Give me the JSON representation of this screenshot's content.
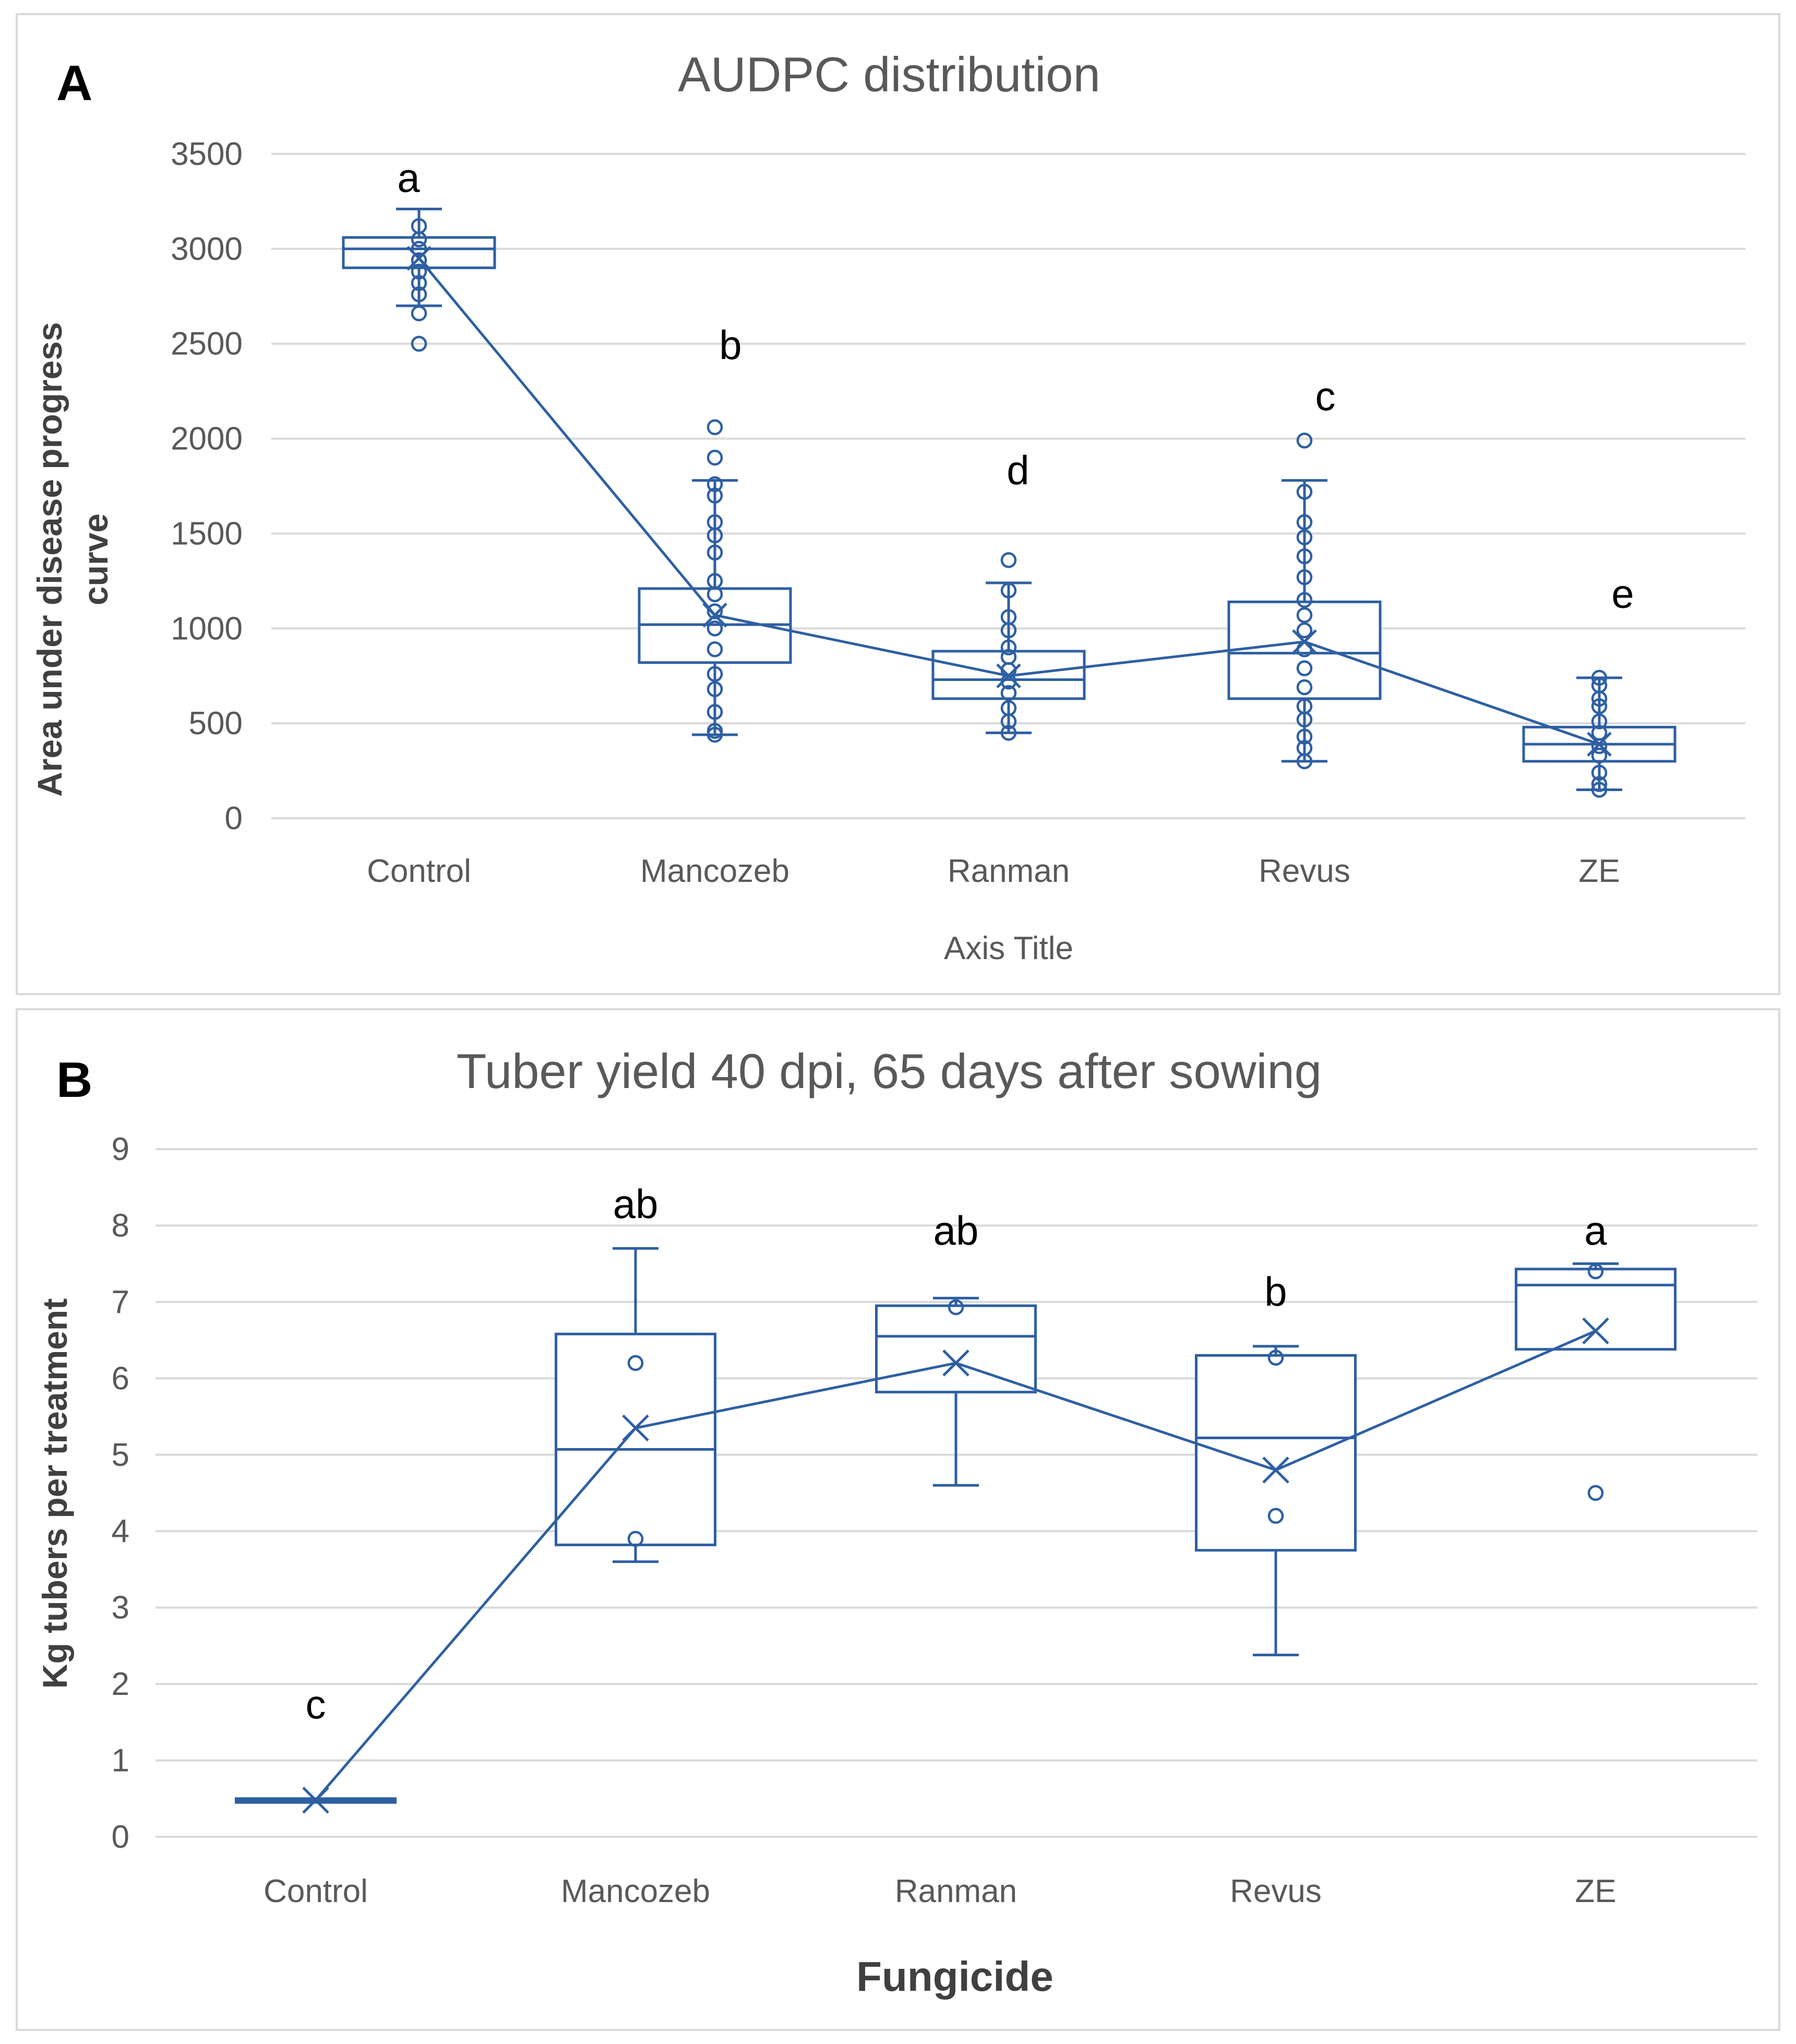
{
  "colors": {
    "series": "#2e5fa3",
    "grid": "#d9d9d9",
    "axis_text": "#595959",
    "letters": "#000000"
  },
  "chart_data": [
    {
      "panel": "A",
      "type": "box",
      "title": "AUDPC distribution",
      "xlabel": "Axis Title",
      "ylabel": "Area under disease progress curve",
      "categories": [
        "Control",
        "Mancozeb",
        "Ranman",
        "Revus",
        "ZE"
      ],
      "yticks": [
        "0",
        "500",
        "1000",
        "1500",
        "2000",
        "2500",
        "3000",
        "3500"
      ],
      "ylim": [
        0,
        3500
      ],
      "boxes": [
        {
          "category": "Control",
          "min": 2700,
          "q1": 2900,
          "median": 3000,
          "q3": 3060,
          "max": 3210,
          "mean": 2950,
          "points": [
            3120,
            3050,
            3000,
            2940,
            2880,
            2820,
            2760,
            2660,
            2500
          ]
        },
        {
          "category": "Mancozeb",
          "min": 440,
          "q1": 820,
          "median": 1020,
          "q3": 1210,
          "max": 1780,
          "mean": 1070,
          "points": [
            2060,
            1900,
            1760,
            1700,
            1560,
            1490,
            1400,
            1250,
            1180,
            1090,
            1000,
            890,
            760,
            680,
            560,
            460,
            440
          ]
        },
        {
          "category": "Ranman",
          "min": 450,
          "q1": 630,
          "median": 730,
          "q3": 880,
          "max": 1240,
          "mean": 750,
          "points": [
            1360,
            1200,
            1060,
            990,
            900,
            850,
            780,
            720,
            660,
            580,
            510,
            450
          ]
        },
        {
          "category": "Revus",
          "min": 300,
          "q1": 630,
          "median": 870,
          "q3": 1140,
          "max": 1780,
          "mean": 930,
          "points": [
            1990,
            1720,
            1560,
            1480,
            1380,
            1270,
            1150,
            1070,
            990,
            890,
            790,
            690,
            590,
            520,
            430,
            370,
            300
          ]
        },
        {
          "category": "ZE",
          "min": 150,
          "q1": 300,
          "median": 390,
          "q3": 480,
          "max": 740,
          "mean": 390,
          "points": [
            740,
            700,
            630,
            590,
            510,
            450,
            380,
            330,
            240,
            180,
            150
          ]
        }
      ],
      "significance": [
        {
          "category": "Control",
          "label": "a",
          "y": 3300
        },
        {
          "category": "Mancozeb",
          "label": "b",
          "y": 2420
        },
        {
          "category": "Ranman",
          "label": "d",
          "y": 1760
        },
        {
          "category": "Revus",
          "label": "c",
          "y": 2150
        },
        {
          "category": "ZE",
          "label": "e",
          "y": 1110
        }
      ]
    },
    {
      "panel": "B",
      "type": "box",
      "title": "Tuber yield 40 dpi, 65 days after sowing",
      "xlabel": "Fungicide",
      "ylabel": "Kg tubers per treatment",
      "categories": [
        "Control",
        "Mancozeb",
        "Ranman",
        "Revus",
        "ZE"
      ],
      "yticks": [
        "0",
        "1",
        "2",
        "3",
        "4",
        "5",
        "6",
        "7",
        "8",
        "9"
      ],
      "ylim": [
        0,
        9
      ],
      "boxes": [
        {
          "category": "Control",
          "min": 0.45,
          "q1": 0.45,
          "median": 0.48,
          "q3": 0.5,
          "max": 0.5,
          "mean": 0.48,
          "points": []
        },
        {
          "category": "Mancozeb",
          "min": 3.6,
          "q1": 3.82,
          "median": 5.07,
          "q3": 6.58,
          "max": 7.7,
          "mean": 5.35,
          "points": [
            6.2,
            3.9
          ]
        },
        {
          "category": "Ranman",
          "min": 4.6,
          "q1": 5.82,
          "median": 6.55,
          "q3": 6.95,
          "max": 7.05,
          "mean": 6.2,
          "points": [
            6.93
          ]
        },
        {
          "category": "Revus",
          "min": 2.38,
          "q1": 3.75,
          "median": 5.22,
          "q3": 6.3,
          "max": 6.42,
          "mean": 4.8,
          "points": [
            6.27,
            4.2
          ]
        },
        {
          "category": "ZE",
          "min": 6.38,
          "q1": 6.38,
          "median": 7.22,
          "q3": 7.43,
          "max": 7.5,
          "mean": 6.62,
          "points": [
            7.4,
            4.5
          ]
        }
      ],
      "significance": [
        {
          "category": "Control",
          "label": "c",
          "y": 1.55
        },
        {
          "category": "Mancozeb",
          "label": "ab",
          "y": 8.1
        },
        {
          "category": "Ranman",
          "label": "ab",
          "y": 7.75
        },
        {
          "category": "Revus",
          "label": "b",
          "y": 6.95
        },
        {
          "category": "ZE",
          "label": "a",
          "y": 7.75
        }
      ]
    }
  ]
}
